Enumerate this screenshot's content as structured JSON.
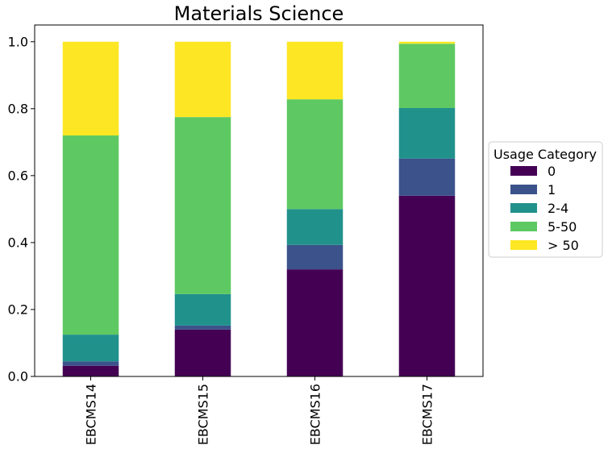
{
  "chart_data": {
    "type": "bar",
    "stacked": true,
    "title": "Materials Science",
    "xlabel": "",
    "ylabel": "",
    "categories": [
      "EBCMS14",
      "EBCMS15",
      "EBCMS16",
      "EBCMS17"
    ],
    "ylim": [
      0,
      1.05
    ],
    "yticks": [
      "0.0",
      "0.2",
      "0.4",
      "0.6",
      "0.8",
      "1.0"
    ],
    "grid": false,
    "legend": {
      "title": "Usage Category",
      "placement": "right"
    },
    "series": [
      {
        "name": "0",
        "color": "#440154",
        "values": [
          0.032,
          0.14,
          0.32,
          0.54
        ]
      },
      {
        "name": "1",
        "color": "#3b528b",
        "values": [
          0.013,
          0.012,
          0.073,
          0.111
        ]
      },
      {
        "name": "2-4",
        "color": "#21918c",
        "values": [
          0.08,
          0.094,
          0.107,
          0.151
        ]
      },
      {
        "name": "5-50",
        "color": "#5ec962",
        "values": [
          0.595,
          0.529,
          0.328,
          0.192
        ]
      },
      {
        "name": "> 50",
        "color": "#fde725",
        "values": [
          0.28,
          0.225,
          0.172,
          0.006
        ]
      }
    ]
  }
}
